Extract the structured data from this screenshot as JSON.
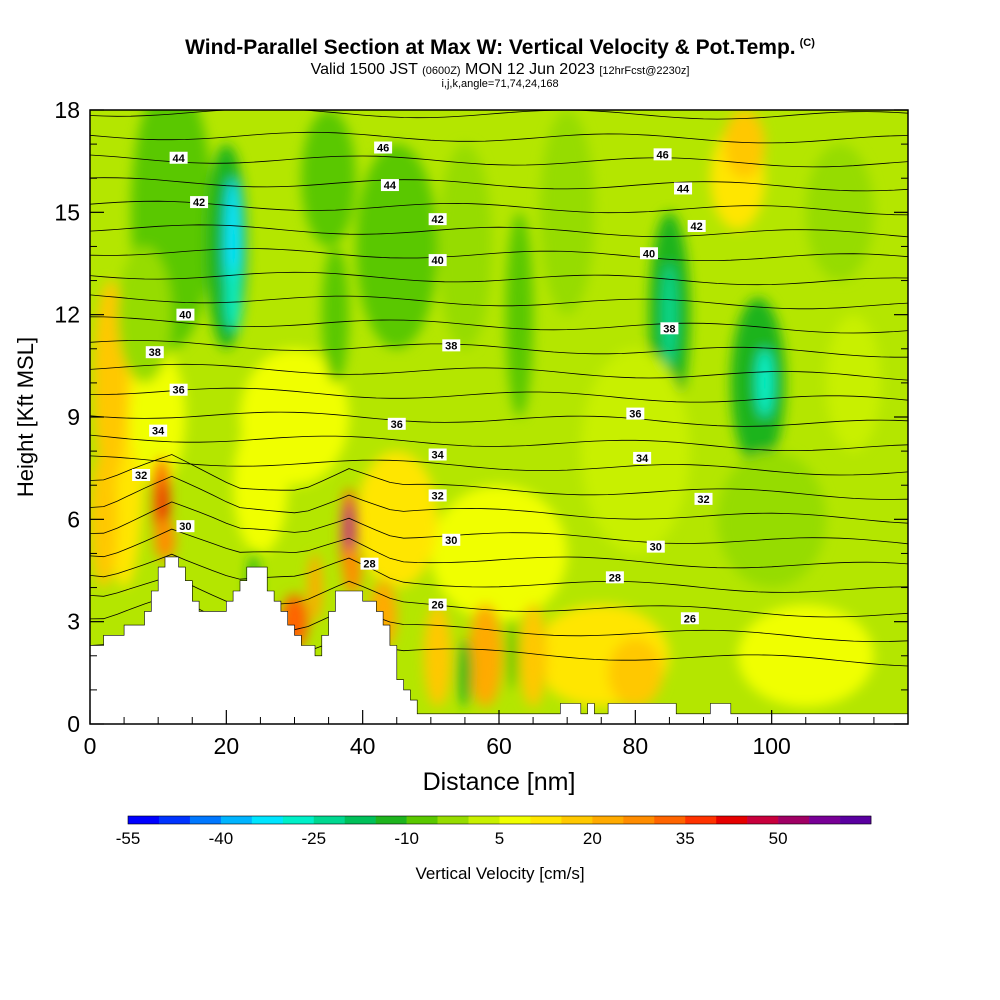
{
  "chart_data": {
    "type": "contour",
    "title": "Wind-Parallel Section at Max W: Vertical Velocity & Pot.Temp.",
    "title_mark": "(C)",
    "subtitle": {
      "valid_time": "Valid 1500 JST",
      "utc_note": "(0600Z)",
      "date": "MON 12 Jun 2023",
      "forecast_note": "[12hrFcst@2230z]"
    },
    "params": "i,j,k,angle=71,74,24,168",
    "xlabel": "Distance [nm]",
    "ylabel": "Height [Kft MSL]",
    "xlim": [
      0,
      120
    ],
    "ylim": [
      0,
      18
    ],
    "xticks": [
      0,
      20,
      40,
      60,
      80,
      100
    ],
    "yticks": [
      0,
      3,
      6,
      9,
      12,
      15,
      18
    ],
    "colorbar": {
      "label": "Vertical Velocity [cm/s]",
      "ticks": [
        -55,
        -40,
        -25,
        -10,
        5,
        20,
        35,
        50
      ],
      "colors": [
        "#0000ff",
        "#0033ff",
        "#0077ff",
        "#00b4ff",
        "#00e5ff",
        "#00f0c8",
        "#00d890",
        "#00c05a",
        "#1eb41e",
        "#5ac800",
        "#96dc00",
        "#c8f000",
        "#f0ff00",
        "#ffe600",
        "#ffc800",
        "#ffaa00",
        "#ff8c00",
        "#ff6400",
        "#ff3200",
        "#e60000",
        "#c8003c",
        "#a00064",
        "#780096",
        "#5a00a0"
      ]
    },
    "potential_temperature_contours": [
      {
        "label": "26",
        "x": 51,
        "y": 3.5
      },
      {
        "label": "26",
        "x": 88,
        "y": 3.1
      },
      {
        "label": "28",
        "x": 41,
        "y": 4.7
      },
      {
        "label": "28",
        "x": 77,
        "y": 4.3
      },
      {
        "label": "30",
        "x": 14,
        "y": 5.8
      },
      {
        "label": "30",
        "x": 53,
        "y": 5.4
      },
      {
        "label": "30",
        "x": 83,
        "y": 5.2
      },
      {
        "label": "32",
        "x": 7.5,
        "y": 7.3
      },
      {
        "label": "32",
        "x": 51,
        "y": 6.7
      },
      {
        "label": "32",
        "x": 90,
        "y": 6.6
      },
      {
        "label": "34",
        "x": 10,
        "y": 8.6
      },
      {
        "label": "34",
        "x": 51,
        "y": 7.9
      },
      {
        "label": "34",
        "x": 81,
        "y": 7.8
      },
      {
        "label": "36",
        "x": 13,
        "y": 9.8
      },
      {
        "label": "36",
        "x": 45,
        "y": 8.8
      },
      {
        "label": "36",
        "x": 80,
        "y": 9.1
      },
      {
        "label": "38",
        "x": 9.5,
        "y": 10.9
      },
      {
        "label": "38",
        "x": 53,
        "y": 11.1
      },
      {
        "label": "38",
        "x": 85,
        "y": 11.6
      },
      {
        "label": "40",
        "x": 14,
        "y": 12.0
      },
      {
        "label": "40",
        "x": 51,
        "y": 13.6
      },
      {
        "label": "40",
        "x": 82,
        "y": 13.8
      },
      {
        "label": "42",
        "x": 16,
        "y": 15.3
      },
      {
        "label": "42",
        "x": 51,
        "y": 14.8
      },
      {
        "label": "42",
        "x": 89,
        "y": 14.6
      },
      {
        "label": "44",
        "x": 13,
        "y": 16.6
      },
      {
        "label": "44",
        "x": 44,
        "y": 15.8
      },
      {
        "label": "44",
        "x": 87,
        "y": 15.7
      },
      {
        "label": "46",
        "x": 43,
        "y": 16.9
      },
      {
        "label": "46",
        "x": 84,
        "y": 16.7
      }
    ],
    "terrain_profile": [
      [
        0,
        2.3
      ],
      [
        2,
        2.3
      ],
      [
        2,
        2.6
      ],
      [
        5,
        2.6
      ],
      [
        5,
        2.9
      ],
      [
        8,
        2.9
      ],
      [
        8,
        3.3
      ],
      [
        9,
        3.3
      ],
      [
        9,
        3.9
      ],
      [
        10,
        3.9
      ],
      [
        10,
        4.6
      ],
      [
        11,
        4.6
      ],
      [
        11,
        4.9
      ],
      [
        13,
        4.9
      ],
      [
        13,
        4.6
      ],
      [
        14,
        4.6
      ],
      [
        14,
        4.2
      ],
      [
        15,
        4.2
      ],
      [
        15,
        3.6
      ],
      [
        16,
        3.6
      ],
      [
        16,
        3.3
      ],
      [
        20,
        3.3
      ],
      [
        20,
        3.6
      ],
      [
        21,
        3.6
      ],
      [
        21,
        3.9
      ],
      [
        22,
        3.9
      ],
      [
        22,
        4.2
      ],
      [
        23,
        4.2
      ],
      [
        23,
        4.6
      ],
      [
        26,
        4.6
      ],
      [
        26,
        3.9
      ],
      [
        27,
        3.9
      ],
      [
        27,
        3.6
      ],
      [
        28,
        3.6
      ],
      [
        28,
        3.3
      ],
      [
        29,
        3.3
      ],
      [
        29,
        2.9
      ],
      [
        30,
        2.9
      ],
      [
        30,
        2.6
      ],
      [
        31,
        2.6
      ],
      [
        31,
        2.3
      ],
      [
        33,
        2.3
      ],
      [
        33,
        2.0
      ],
      [
        34,
        2.0
      ],
      [
        34,
        2.6
      ],
      [
        35,
        2.6
      ],
      [
        35,
        3.3
      ],
      [
        36,
        3.3
      ],
      [
        36,
        3.9
      ],
      [
        40,
        3.9
      ],
      [
        40,
        3.6
      ],
      [
        42,
        3.6
      ],
      [
        42,
        3.3
      ],
      [
        43,
        3.3
      ],
      [
        43,
        2.9
      ],
      [
        44,
        2.9
      ],
      [
        44,
        2.3
      ],
      [
        45,
        2.3
      ],
      [
        45,
        1.3
      ],
      [
        46,
        1.3
      ],
      [
        46,
        1.0
      ],
      [
        47,
        1.0
      ],
      [
        47,
        0.7
      ],
      [
        48,
        0.7
      ],
      [
        48,
        0.3
      ],
      [
        49,
        0.3
      ],
      [
        49,
        0.3
      ],
      [
        69,
        0.3
      ],
      [
        69,
        0.6
      ],
      [
        72,
        0.6
      ],
      [
        72,
        0.3
      ],
      [
        73,
        0.3
      ],
      [
        73,
        0.6
      ],
      [
        74,
        0.6
      ],
      [
        74,
        0.3
      ],
      [
        76,
        0.3
      ],
      [
        76,
        0.6
      ],
      [
        86,
        0.6
      ],
      [
        86,
        0.3
      ],
      [
        91,
        0.3
      ],
      [
        91,
        0.6
      ],
      [
        94,
        0.6
      ],
      [
        94,
        0.3
      ],
      [
        120,
        0.3
      ]
    ]
  }
}
